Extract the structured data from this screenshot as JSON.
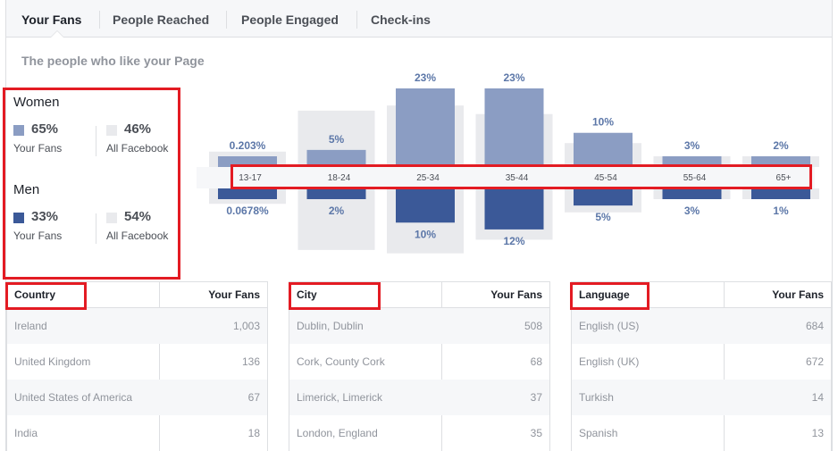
{
  "tabs": [
    {
      "label": "Your Fans",
      "active": true
    },
    {
      "label": "People Reached",
      "active": false
    },
    {
      "label": "People Engaged",
      "active": false
    },
    {
      "label": "Check-ins",
      "active": false
    }
  ],
  "subtitle": "The people who like your Page",
  "gender": {
    "women": {
      "title": "Women",
      "fans_pct": "65%",
      "fans_label": "Your Fans",
      "fb_pct": "46%",
      "fb_label": "All Facebook"
    },
    "men": {
      "title": "Men",
      "fans_pct": "33%",
      "fans_label": "Your Fans",
      "fb_pct": "54%",
      "fb_label": "All Facebook"
    }
  },
  "colors": {
    "women": "#8b9dc3",
    "men": "#3b5998",
    "all_facebook": "#e9eaed",
    "annotation": "#e31b23"
  },
  "chart_data": {
    "type": "bar",
    "categories": [
      "13-17",
      "18-24",
      "25-34",
      "35-44",
      "45-54",
      "55-64",
      "65+"
    ],
    "series": [
      {
        "name": "Women",
        "values": [
          0.203,
          5,
          23,
          23,
          10,
          3,
          2
        ],
        "labels": [
          "0.203%",
          "5%",
          "23%",
          "23%",
          "10%",
          "3%",
          "2%"
        ]
      },
      {
        "name": "Men",
        "values": [
          0.0678,
          2,
          10,
          12,
          5,
          3,
          1
        ],
        "labels": [
          "0.0678%",
          "2%",
          "10%",
          "12%",
          "5%",
          "3%",
          "1%"
        ]
      },
      {
        "name": "All Facebook Women",
        "values": [
          4.5,
          16.5,
          18,
          15.5,
          7,
          2.5,
          1.3
        ]
      },
      {
        "name": "All Facebook Men",
        "values": [
          4.5,
          18,
          19,
          15,
          7,
          2.5,
          1.3
        ]
      }
    ],
    "ylim": [
      0,
      23
    ]
  },
  "tables": [
    {
      "header": "Country",
      "value_header": "Your Fans",
      "rows": [
        {
          "name": "Ireland",
          "value": "1,003"
        },
        {
          "name": "United Kingdom",
          "value": "136"
        },
        {
          "name": "United States of America",
          "value": "67"
        },
        {
          "name": "India",
          "value": "18"
        }
      ]
    },
    {
      "header": "City",
      "value_header": "Your Fans",
      "rows": [
        {
          "name": "Dublin, Dublin",
          "value": "508"
        },
        {
          "name": "Cork, County Cork",
          "value": "68"
        },
        {
          "name": "Limerick, Limerick",
          "value": "37"
        },
        {
          "name": "London, England",
          "value": "35"
        }
      ]
    },
    {
      "header": "Language",
      "value_header": "Your Fans",
      "rows": [
        {
          "name": "English (US)",
          "value": "684"
        },
        {
          "name": "English (UK)",
          "value": "672"
        },
        {
          "name": "Turkish",
          "value": "14"
        },
        {
          "name": "Spanish",
          "value": "13"
        }
      ]
    }
  ]
}
